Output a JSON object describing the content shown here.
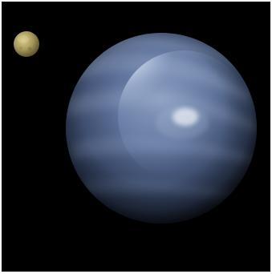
{
  "scene": {
    "background_color": "#000000",
    "frame_color": "#ffffff",
    "large_planet": {
      "icon": "blue-gas-giant-icon",
      "base_color": "#4a5f86",
      "highlight_color": "#dfe9f7",
      "shadow_color": "#141c2b"
    },
    "small_moon": {
      "icon": "tan-moon-icon",
      "base_color": "#a99a5c",
      "highlight_color": "#d9cd8d",
      "shadow_color": "#4b4127"
    }
  }
}
